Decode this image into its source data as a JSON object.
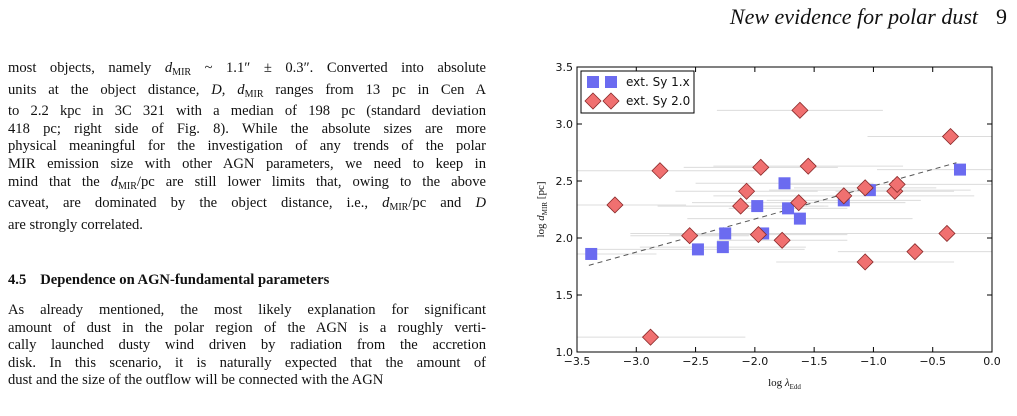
{
  "running_head": {
    "title": "New evidence for polar dust",
    "page": "9"
  },
  "paragraph1_lines": [
    "most objects, namely d_MIR ~ 1.1″ ± 0.3″. Converted into absolute",
    "units at the object distance, D, d_MIR ranges from 13 pc in Cen A",
    "to 2.2 kpc in 3C 321 with a median of 198 pc (standard deviation",
    "418 pc; right side of Fig. 8). While the absolute sizes are more",
    "physical meaningful for the investigation of any trends of the polar",
    "MIR emission size with other AGN parameters, we need to keep in",
    "mind that the d_MIR/pc are still lower limits that, owing to the above",
    "caveat, are dominated by the object distance, i.e., d_MIR/pc and D",
    "are strongly correlated."
  ],
  "section": {
    "number": "4.5",
    "title": "Dependence on AGN-fundamental parameters"
  },
  "paragraph2_lines": [
    "As already mentioned, the most likely explanation for significant",
    "amount of dust in the polar region of the AGN is a roughly verti-",
    "cally launched dusty wind driven by radiation from the accretion",
    "disk. In this scenario, it is naturally expected that the amount of",
    "dust and the size of the outflow will be connected with the AGN"
  ],
  "chart_data": {
    "type": "scatter",
    "xlabel": "log λEdd",
    "ylabel": "log dMIR [pc]",
    "xlim": [
      -3.5,
      0.0
    ],
    "ylim": [
      1.0,
      3.5
    ],
    "xticks": [
      "−3.5",
      "−3.0",
      "−2.5",
      "−2.0",
      "−1.5",
      "−1.0",
      "−0.5",
      "0.0"
    ],
    "yticks": [
      "1.0",
      "1.5",
      "2.0",
      "2.5",
      "3.0",
      "3.5"
    ],
    "grid": false,
    "legend_position": "top-left",
    "colors": {
      "sy1": "#6b6bf0",
      "sy2": "#f07070",
      "fit": "#555555",
      "errorbar": "#dcdcdc"
    },
    "series": [
      {
        "name": "ext. Sy 1.x",
        "marker": "square",
        "x": [
          -3.38,
          -2.48,
          -2.27,
          -2.25,
          -1.93,
          -1.98,
          -1.75,
          -1.72,
          -1.62,
          -1.25,
          -1.03,
          -0.27
        ],
        "y": [
          1.86,
          1.9,
          1.92,
          2.04,
          2.04,
          2.28,
          2.48,
          2.26,
          2.17,
          2.33,
          2.42,
          2.6
        ]
      },
      {
        "name": "ext. Sy 2.0",
        "marker": "diamond",
        "x": [
          -3.18,
          -2.88,
          -2.8,
          -2.55,
          -2.12,
          -2.07,
          -1.97,
          -1.95,
          -1.77,
          -1.63,
          -1.62,
          -1.55,
          -1.25,
          -1.07,
          -1.07,
          -0.82,
          -0.8,
          -0.65,
          -0.38,
          -0.35
        ],
        "y": [
          2.29,
          1.13,
          2.59,
          2.02,
          2.28,
          2.41,
          2.03,
          2.62,
          1.98,
          2.31,
          3.12,
          2.63,
          2.37,
          2.44,
          1.79,
          2.41,
          2.47,
          1.88,
          2.04,
          2.89
        ]
      }
    ],
    "fit_line": {
      "x": [
        -3.4,
        -0.3
      ],
      "y": [
        1.76,
        2.66
      ]
    }
  }
}
